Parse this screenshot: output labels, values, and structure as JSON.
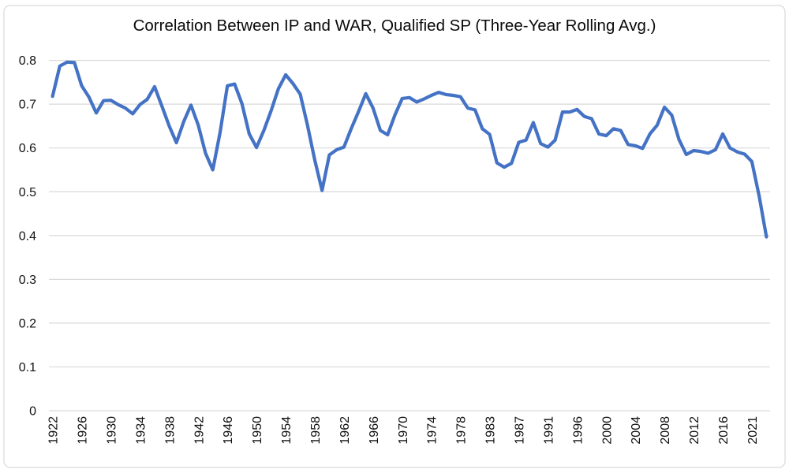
{
  "chart_data": {
    "type": "line",
    "title": "Correlation Between IP and WAR, Qualified SP (Three-Year Rolling Avg.)",
    "xlabel": "",
    "ylabel": "",
    "ylim": [
      0,
      0.8
    ],
    "ytick_step": 0.1,
    "grid": true,
    "legend": "none",
    "colors": {
      "line": "#4472C4",
      "gridline": "#D9D9D9",
      "chart_border": "#D9D9D9",
      "background": "#FFFFFF",
      "text": "#111111"
    },
    "y_tick_labels": [
      "0",
      "0.1",
      "0.2",
      "0.3",
      "0.4",
      "0.5",
      "0.6",
      "0.7",
      "0.8"
    ],
    "x_tick_labels": [
      "1922",
      "1926",
      "1930",
      "1934",
      "1938",
      "1942",
      "1946",
      "1950",
      "1954",
      "1958",
      "1962",
      "1966",
      "1970",
      "1974",
      "1978",
      "1983",
      "1987",
      "1991",
      "1996",
      "2000",
      "2004",
      "2008",
      "2012",
      "2016",
      "2021"
    ],
    "x_tick_every": 4,
    "categories": [
      "1922",
      "1923",
      "1924",
      "1925",
      "1926",
      "1927",
      "1928",
      "1929",
      "1930",
      "1931",
      "1932",
      "1933",
      "1934",
      "1935",
      "1936",
      "1937",
      "1938",
      "1939",
      "1940",
      "1941",
      "1942",
      "1943",
      "1944",
      "1945",
      "1946",
      "1947",
      "1948",
      "1949",
      "1950",
      "1951",
      "1952",
      "1953",
      "1954",
      "1955",
      "1956",
      "1957",
      "1958",
      "1959",
      "1960",
      "1961",
      "1962",
      "1963",
      "1964",
      "1965",
      "1966",
      "1967",
      "1968",
      "1969",
      "1970",
      "1971",
      "1972",
      "1973",
      "1974",
      "1975",
      "1976",
      "1977",
      "1978",
      "1979",
      "1980",
      "1982",
      "1983",
      "1984",
      "1985",
      "1986",
      "1987",
      "1988",
      "1989",
      "1990",
      "1991",
      "1992",
      "1993",
      "1995",
      "1996",
      "1997",
      "1998",
      "1999",
      "2000",
      "2001",
      "2002",
      "2003",
      "2004",
      "2005",
      "2006",
      "2007",
      "2008",
      "2009",
      "2010",
      "2011",
      "2012",
      "2013",
      "2014",
      "2015",
      "2016",
      "2017",
      "2018",
      "2019",
      "2021",
      "2022",
      "2023"
    ],
    "series": [
      {
        "name": "IP-WAR correlation (3-yr rolling avg)",
        "values": [
          0.718,
          0.787,
          0.796,
          0.795,
          0.742,
          0.716,
          0.68,
          0.708,
          0.709,
          0.699,
          0.691,
          0.678,
          0.699,
          0.711,
          0.74,
          0.696,
          0.651,
          0.612,
          0.66,
          0.698,
          0.652,
          0.588,
          0.55,
          0.636,
          0.742,
          0.746,
          0.701,
          0.632,
          0.601,
          0.64,
          0.685,
          0.735,
          0.767,
          0.747,
          0.723,
          0.652,
          0.572,
          0.503,
          0.584,
          0.596,
          0.602,
          0.644,
          0.683,
          0.724,
          0.691,
          0.64,
          0.63,
          0.675,
          0.713,
          0.715,
          0.705,
          0.712,
          0.72,
          0.727,
          0.722,
          0.72,
          0.717,
          0.691,
          0.687,
          0.644,
          0.631,
          0.566,
          0.556,
          0.565,
          0.613,
          0.618,
          0.658,
          0.61,
          0.602,
          0.618,
          0.682,
          0.682,
          0.688,
          0.672,
          0.667,
          0.632,
          0.628,
          0.644,
          0.64,
          0.608,
          0.605,
          0.599,
          0.632,
          0.652,
          0.693,
          0.675,
          0.619,
          0.585,
          0.594,
          0.592,
          0.588,
          0.596,
          0.632,
          0.6,
          0.591,
          0.586,
          0.569,
          0.49,
          0.397
        ]
      }
    ]
  }
}
